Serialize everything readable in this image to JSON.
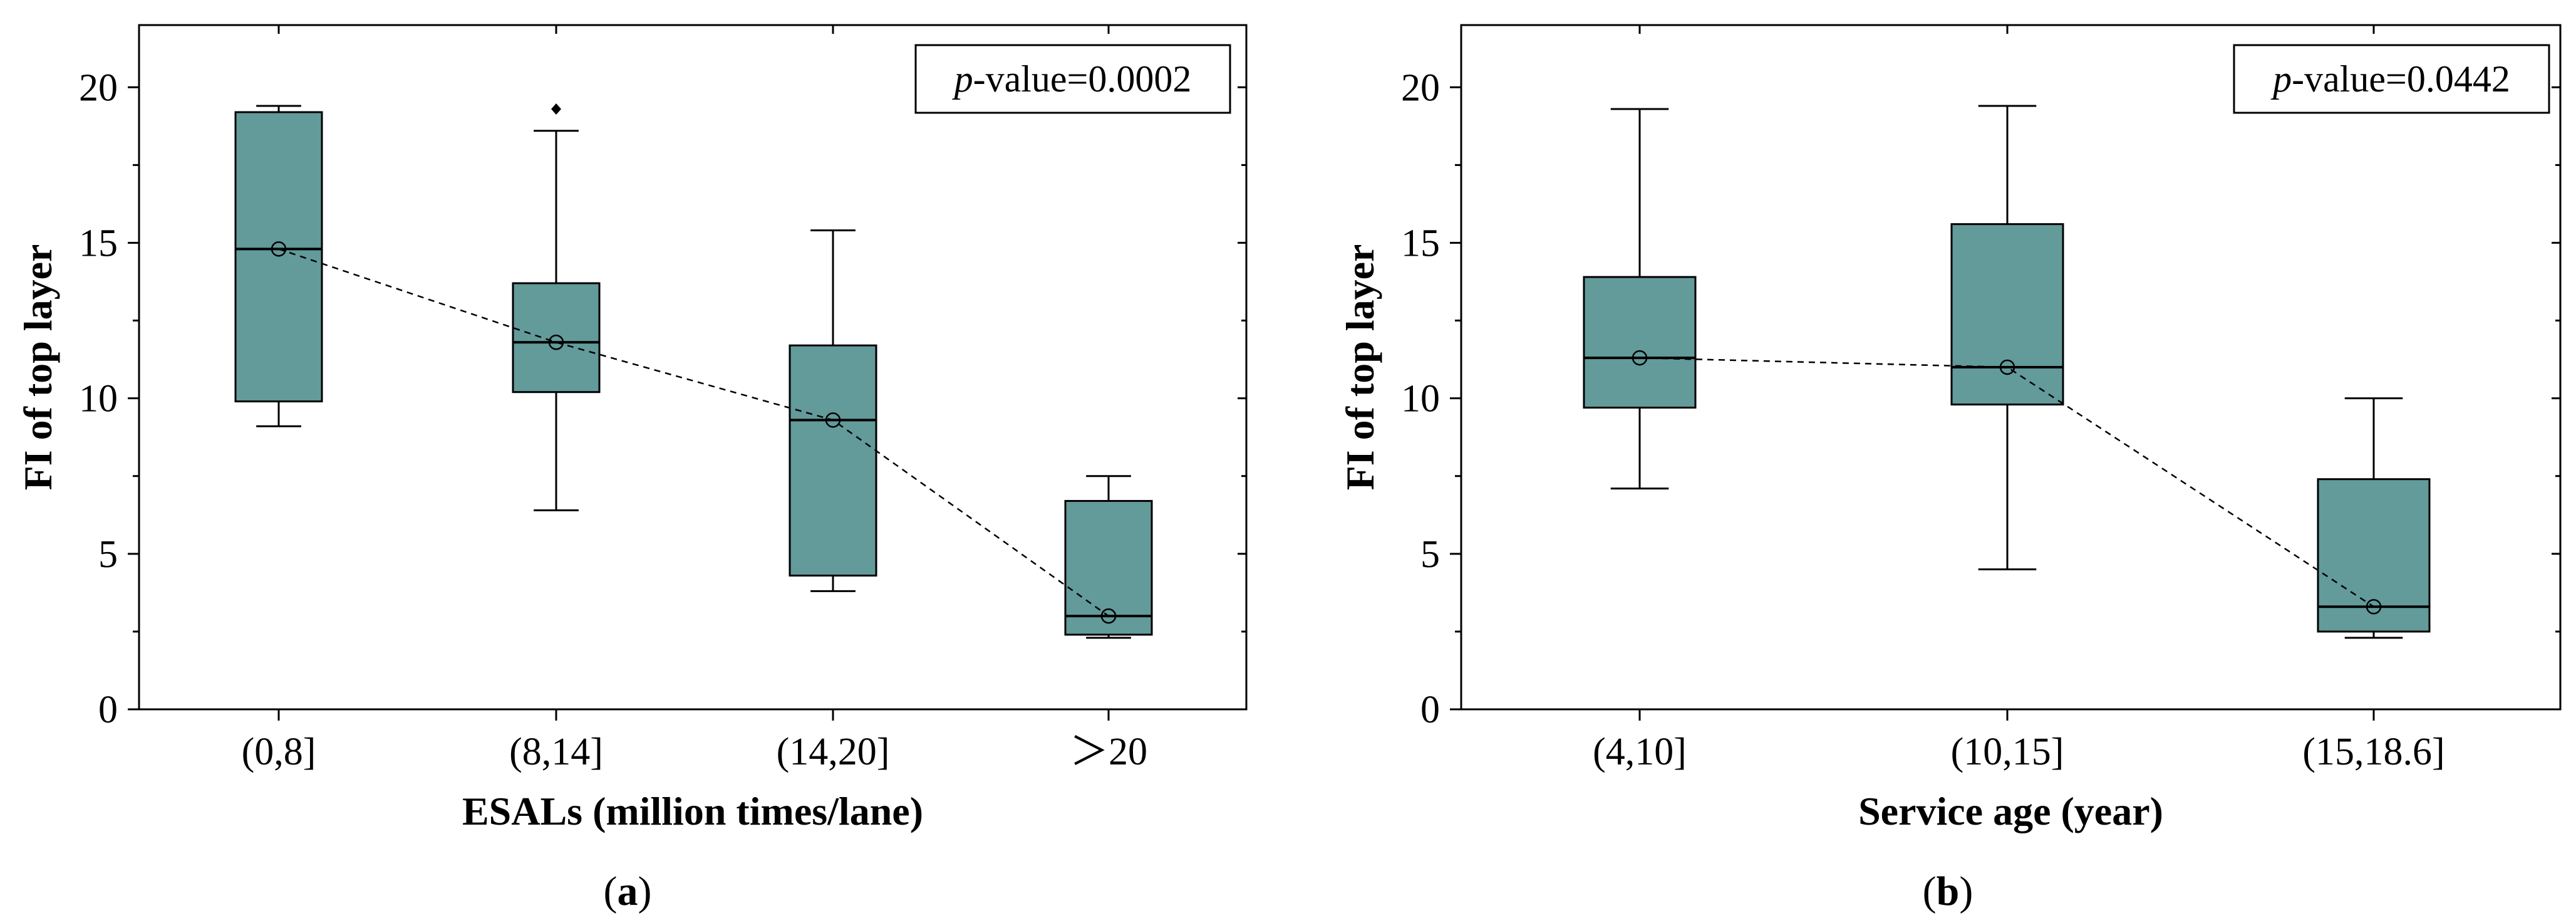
{
  "chart_data": [
    {
      "type": "box",
      "panel_label": "a",
      "xlabel": "ESALs (million times/lane)",
      "ylabel": "FI of top layer",
      "ylim": [
        0,
        22
      ],
      "yticks": [
        0,
        5,
        10,
        15,
        20
      ],
      "ytick_labels": [
        "0",
        "5",
        "10",
        "15",
        "20"
      ],
      "annotation": {
        "italic": "p",
        "rest": "-value=0.0002"
      },
      "colors": {
        "box_fill": "#639a9a"
      },
      "categories": [
        "(0,8]",
        "(8,14]",
        "(14,20]",
        "＞20"
      ],
      "boxes": [
        {
          "min": 9.1,
          "q1": 9.9,
          "median": 14.8,
          "q3": 19.2,
          "max": 19.4,
          "mean": 14.8,
          "outliers": []
        },
        {
          "min": 6.4,
          "q1": 10.2,
          "median": 11.8,
          "q3": 13.7,
          "max": 18.6,
          "mean": 11.8,
          "outliers": [
            19.3
          ]
        },
        {
          "min": 3.8,
          "q1": 4.3,
          "median": 9.3,
          "q3": 11.7,
          "max": 15.4,
          "mean": 9.3,
          "outliers": []
        },
        {
          "min": 2.3,
          "q1": 2.4,
          "median": 3.0,
          "q3": 6.7,
          "max": 7.5,
          "mean": 3.0,
          "outliers": []
        }
      ]
    },
    {
      "type": "box",
      "panel_label": "b",
      "xlabel": "Service age (year)",
      "ylabel": "FI of top layer",
      "ylim": [
        0,
        22
      ],
      "yticks": [
        0,
        5,
        10,
        15,
        20
      ],
      "ytick_labels": [
        "0",
        "5",
        "10",
        "15",
        "20"
      ],
      "annotation": {
        "italic": "p",
        "rest": "-value=0.0442"
      },
      "colors": {
        "box_fill": "#639a9a"
      },
      "categories": [
        "(4,10]",
        "(10,15]",
        "(15,18.6]"
      ],
      "boxes": [
        {
          "min": 7.1,
          "q1": 9.7,
          "median": 11.3,
          "q3": 13.9,
          "max": 19.3,
          "mean": 11.3,
          "outliers": []
        },
        {
          "min": 4.5,
          "q1": 9.8,
          "median": 11.0,
          "q3": 15.6,
          "max": 19.4,
          "mean": 11.0,
          "outliers": []
        },
        {
          "min": 2.3,
          "q1": 2.5,
          "median": 3.3,
          "q3": 7.4,
          "max": 10.0,
          "mean": 3.3,
          "outliers": []
        }
      ]
    }
  ]
}
